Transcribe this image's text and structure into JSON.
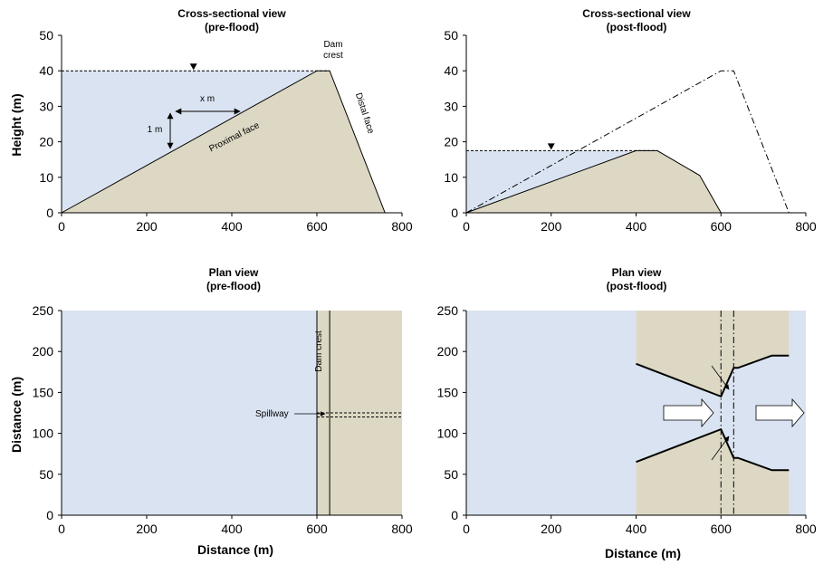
{
  "colors": {
    "water": "#dae3f1",
    "land": "#ddd8c4",
    "line": "#000000"
  },
  "panels": {
    "cross_pre": {
      "title1": "Cross-sectional view",
      "title2": "(pre-flood)",
      "ylabel": "Height (m)",
      "xticks": [
        "0",
        "200",
        "400",
        "600",
        "800"
      ],
      "yticks": [
        "0",
        "10",
        "20",
        "30",
        "40",
        "50"
      ],
      "xlim": [
        0,
        800
      ],
      "ylim": [
        0,
        50
      ],
      "water_level": 40,
      "dam_profile": [
        [
          0,
          0
        ],
        [
          600,
          40
        ],
        [
          630,
          40
        ],
        [
          760,
          0
        ]
      ],
      "labels": {
        "dam_crest_1": "Dam",
        "dam_crest_2": "crest",
        "x_m": "x m",
        "one_m": "1 m",
        "proximal": "Proximal face",
        "distal": "Distal face"
      }
    },
    "cross_post": {
      "title1": "Cross-sectional view",
      "title2": "(post-flood)",
      "xticks": [
        "0",
        "200",
        "400",
        "600",
        "800"
      ],
      "yticks": [
        "0",
        "10",
        "20",
        "30",
        "40",
        "50"
      ],
      "xlim": [
        0,
        800
      ],
      "ylim": [
        0,
        50
      ],
      "water_level": 17.5,
      "dam_profile": [
        [
          0,
          0
        ],
        [
          400,
          17.5
        ],
        [
          450,
          17.5
        ],
        [
          550,
          10.5
        ],
        [
          600,
          0
        ]
      ],
      "original_profile": [
        [
          0,
          0
        ],
        [
          600,
          40
        ],
        [
          630,
          40
        ],
        [
          760,
          0
        ]
      ]
    },
    "plan_pre": {
      "title1": "Plan view",
      "title2": "(pre-flood)",
      "xlabel": "Distance (m)",
      "ylabel": "Distance (m)",
      "xticks": [
        "0",
        "200",
        "400",
        "600",
        "800"
      ],
      "yticks": [
        "0",
        "50",
        "100",
        "150",
        "200",
        "250"
      ],
      "xlim": [
        0,
        800
      ],
      "ylim": [
        0,
        250
      ],
      "dam_lines_x": [
        600,
        630
      ],
      "spillway_y": [
        120,
        125
      ],
      "labels": {
        "dam_crest": "Dam crest",
        "spillway": "Spillway"
      }
    },
    "plan_post": {
      "title1": "Plan view",
      "title2": "(post-flood)",
      "xlabel": "Distance (m)",
      "xticks": [
        "0",
        "200",
        "400",
        "600",
        "800"
      ],
      "yticks": [
        "0",
        "50",
        "100",
        "150",
        "200",
        "250"
      ],
      "xlim": [
        0,
        800
      ],
      "ylim": [
        0,
        250
      ],
      "land_x": [
        400,
        760
      ],
      "upper_bank": [
        [
          400,
          185
        ],
        [
          600,
          145
        ],
        [
          630,
          180
        ],
        [
          640,
          180
        ],
        [
          720,
          195
        ],
        [
          760,
          195
        ]
      ],
      "lower_bank": [
        [
          400,
          65
        ],
        [
          600,
          105
        ],
        [
          630,
          70
        ],
        [
          640,
          70
        ],
        [
          720,
          55
        ],
        [
          760,
          55
        ]
      ],
      "crest_lines_x": [
        600,
        630
      ]
    }
  }
}
